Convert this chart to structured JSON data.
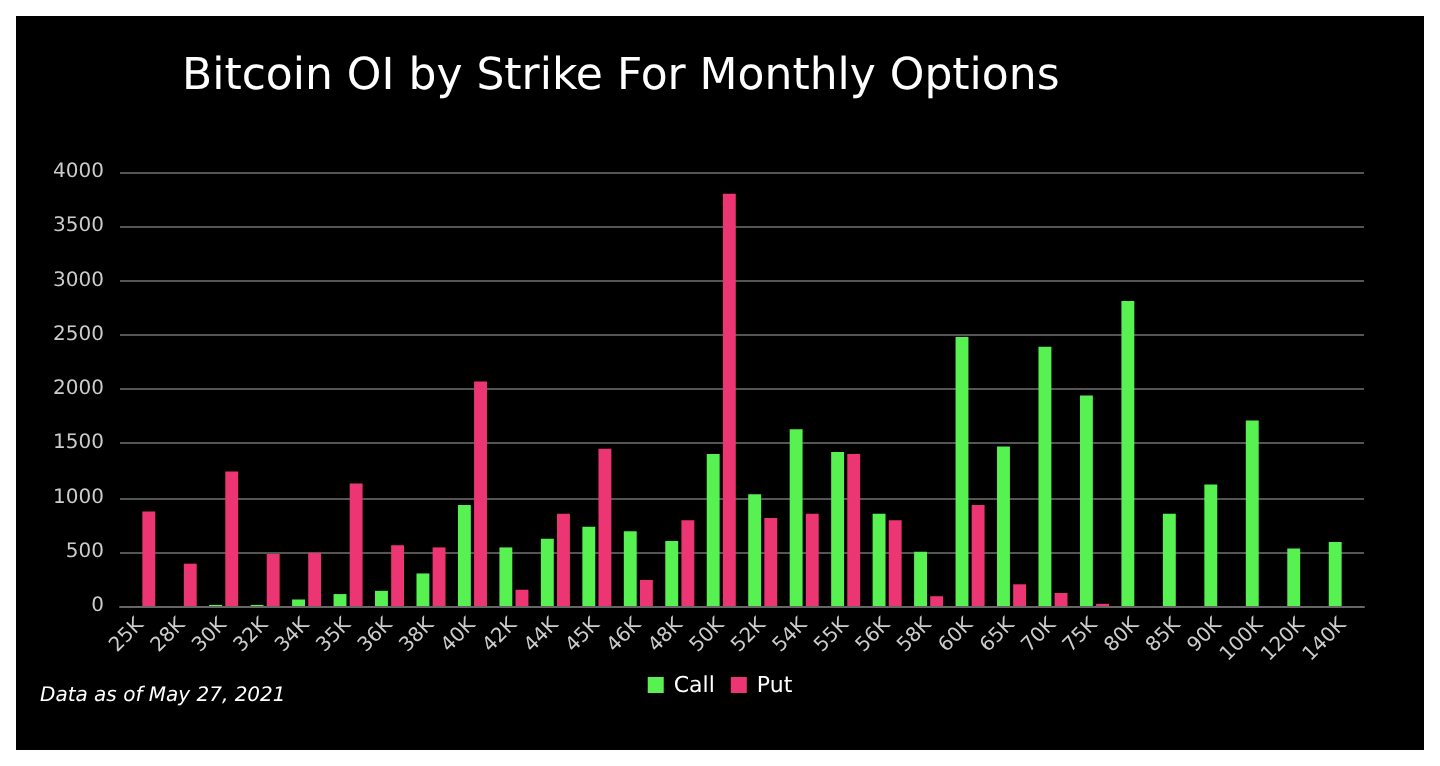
{
  "chart_data": {
    "type": "bar",
    "title": "Bitcoin OI by Strike For Monthly Options",
    "categories": [
      "25K",
      "28K",
      "30K",
      "32K",
      "34K",
      "35K",
      "36K",
      "38K",
      "40K",
      "42K",
      "44K",
      "45K",
      "46K",
      "48K",
      "50K",
      "52K",
      "54K",
      "55K",
      "56K",
      "58K",
      "60K",
      "65K",
      "70K",
      "75K",
      "80K",
      "85K",
      "90K",
      "100K",
      "120K",
      "140K"
    ],
    "series": [
      {
        "name": "Call",
        "color": "#57f152",
        "values": [
          0,
          0,
          10,
          10,
          60,
          110,
          140,
          300,
          930,
          540,
          620,
          730,
          690,
          600,
          1400,
          1030,
          1630,
          1420,
          850,
          500,
          2480,
          1470,
          2390,
          1940,
          2810,
          850,
          1120,
          1710,
          530,
          590
        ]
      },
      {
        "name": "Put",
        "color": "#ec3673",
        "values": [
          870,
          390,
          1240,
          480,
          490,
          1130,
          560,
          540,
          2070,
          150,
          850,
          1450,
          240,
          790,
          3800,
          810,
          850,
          1400,
          790,
          90,
          930,
          200,
          120,
          20,
          0,
          0,
          0,
          0,
          0,
          0
        ]
      }
    ],
    "ylim": [
      0,
      4000
    ],
    "yticks": [
      0,
      500,
      1000,
      1500,
      2000,
      2500,
      3000,
      3500,
      4000
    ],
    "grid": "y",
    "legend": "bottom",
    "annotations": [
      "Data as of May 27, 2021"
    ]
  }
}
